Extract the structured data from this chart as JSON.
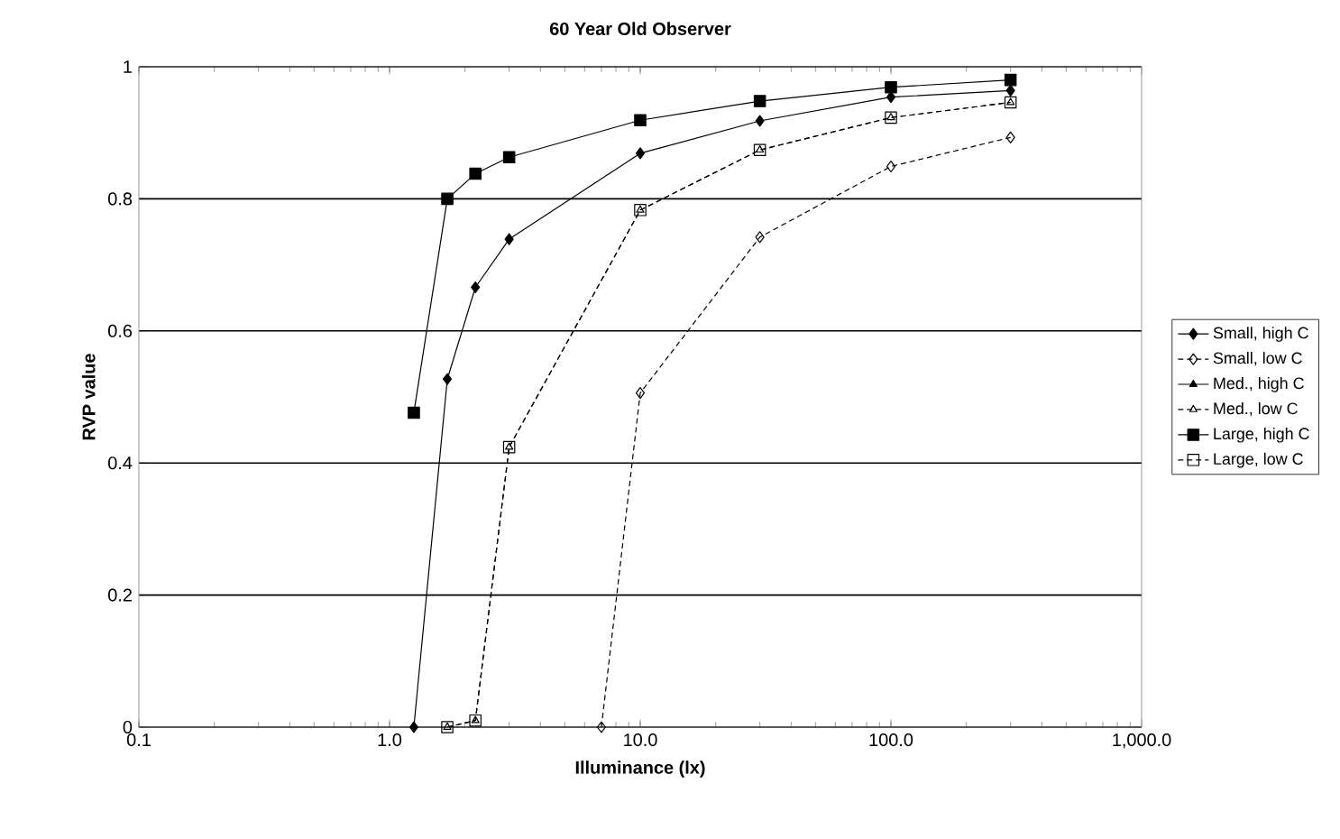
{
  "chart_data": {
    "type": "line",
    "title": "60 Year Old Observer",
    "xlabel": "Illuminance (lx)",
    "ylabel": "RVP value",
    "log": "x",
    "xlim": [
      0.1,
      1000
    ],
    "xticks": [
      {
        "value": 0.1,
        "label": "0.1"
      },
      {
        "value": 1,
        "label": "1.0"
      },
      {
        "value": 10,
        "label": "10.0"
      },
      {
        "value": 100,
        "label": "100.0"
      },
      {
        "value": 1000,
        "label": "1,000.0"
      }
    ],
    "ylim": [
      0,
      1
    ],
    "yticks": [
      0,
      0.2,
      0.4,
      0.6,
      0.8,
      1
    ],
    "grid": "y",
    "legend": "right",
    "x": [
      1.25,
      1.7,
      2.2,
      3,
      10,
      30,
      100,
      300
    ],
    "series": [
      {
        "name": "Small, high C",
        "color": "#000000",
        "marker": "diamond",
        "line_style": "solid",
        "values": [
          0,
          0.527,
          0.666,
          0.739,
          0.869,
          0.918,
          0.954,
          0.964
        ]
      },
      {
        "name": "Small, low C",
        "color": "#000000",
        "marker": "diamond",
        "line_style": "dashed",
        "x": [
          7,
          10,
          30,
          100,
          300
        ],
        "values": [
          0,
          0.506,
          0.742,
          0.849,
          0.893
        ]
      },
      {
        "name": "Med., high C",
        "color": "#000000",
        "marker": "triangle",
        "line_style": "solid",
        "values": [
          null,
          null,
          null,
          null,
          null,
          null,
          null,
          null
        ]
      },
      {
        "name": "Med., low C",
        "color": "#000000",
        "marker": "triangle",
        "line_style": "dashed",
        "values": [
          null,
          0,
          0.01,
          0.424,
          0.783,
          0.874,
          0.923,
          0.946
        ]
      },
      {
        "name": "Large, high C",
        "color": "#000000",
        "marker": "square",
        "line_style": "solid",
        "values": [
          0.476,
          0.8,
          0.838,
          0.863,
          0.919,
          0.948,
          0.969,
          0.98
        ]
      },
      {
        "name": "Large, low C",
        "color": "#000000",
        "marker": "square",
        "line_style": "dashed",
        "values": [
          null,
          0,
          0.01,
          0.424,
          0.783,
          0.874,
          0.923,
          0.946
        ]
      }
    ]
  }
}
